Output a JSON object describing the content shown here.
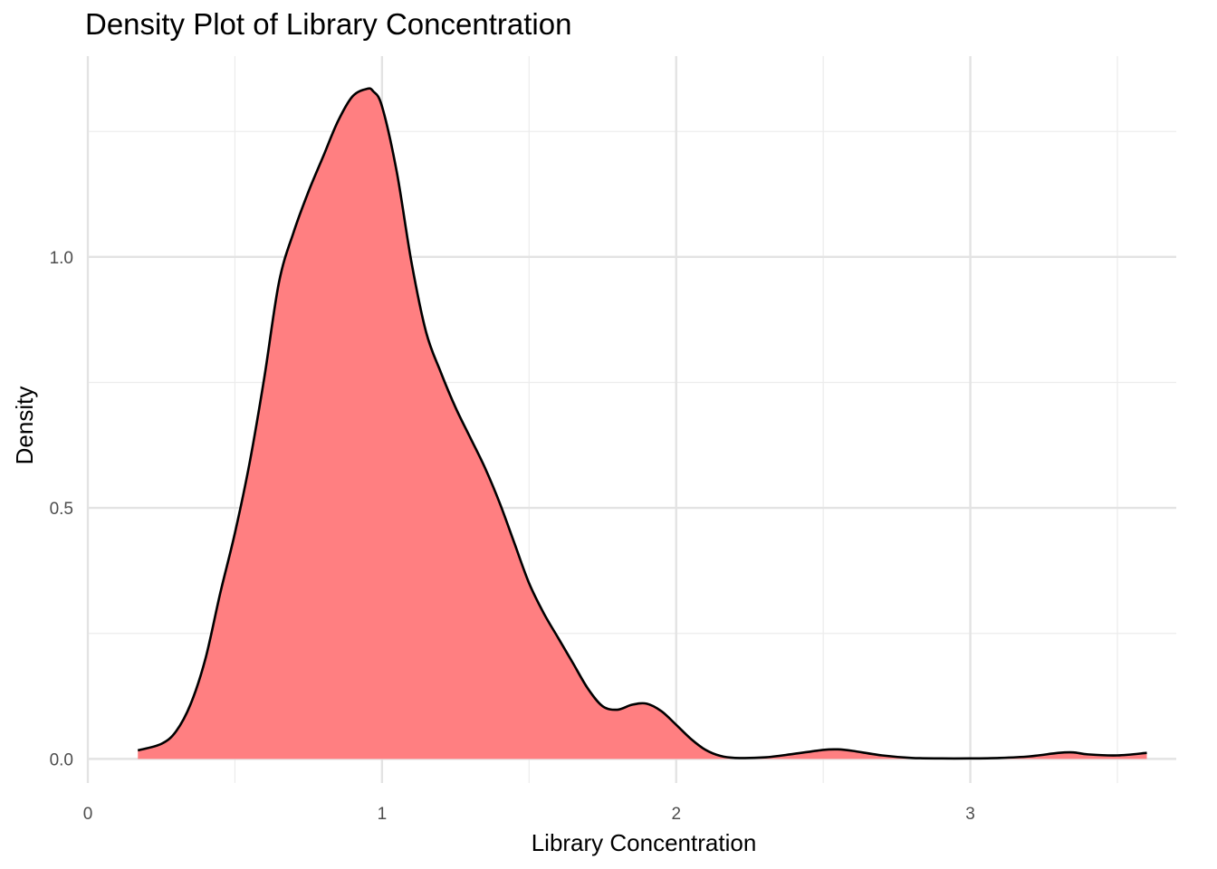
{
  "chart_data": {
    "type": "area",
    "title": "Density Plot of Library Concentration",
    "xlabel": "Library Concentration",
    "ylabel": "Density",
    "xlim": [
      0,
      3.7
    ],
    "ylim": [
      -0.048,
      1.4
    ],
    "x_ticks": [
      0,
      1,
      2,
      3
    ],
    "x_tick_labels": [
      "0",
      "1",
      "2",
      "3"
    ],
    "y_ticks": [
      0.0,
      0.5,
      1.0
    ],
    "y_tick_labels": [
      "0.0",
      "0.5",
      "1.0"
    ],
    "grid": true,
    "fill_color": "#ff7f81",
    "line_color": "#000000",
    "series": [
      {
        "x": [
          0.17,
          0.25,
          0.3,
          0.35,
          0.4,
          0.45,
          0.5,
          0.55,
          0.6,
          0.65,
          0.7,
          0.75,
          0.8,
          0.85,
          0.9,
          0.95,
          0.97,
          1.0,
          1.05,
          1.1,
          1.15,
          1.2,
          1.25,
          1.3,
          1.35,
          1.4,
          1.45,
          1.5,
          1.55,
          1.6,
          1.65,
          1.7,
          1.75,
          1.8,
          1.85,
          1.9,
          1.95,
          2.0,
          2.05,
          2.1,
          2.15,
          2.2,
          2.3,
          2.4,
          2.5,
          2.55,
          2.6,
          2.7,
          2.8,
          2.9,
          3.0,
          3.1,
          3.2,
          3.3,
          3.35,
          3.4,
          3.5,
          3.6
        ],
        "y": [
          0.017,
          0.03,
          0.055,
          0.11,
          0.2,
          0.33,
          0.45,
          0.59,
          0.76,
          0.95,
          1.05,
          1.13,
          1.2,
          1.27,
          1.32,
          1.335,
          1.33,
          1.3,
          1.17,
          0.99,
          0.85,
          0.77,
          0.7,
          0.64,
          0.58,
          0.51,
          0.43,
          0.35,
          0.29,
          0.24,
          0.19,
          0.14,
          0.105,
          0.098,
          0.108,
          0.11,
          0.095,
          0.068,
          0.04,
          0.018,
          0.006,
          0.002,
          0.003,
          0.01,
          0.018,
          0.019,
          0.016,
          0.007,
          0.002,
          0.001,
          0.001,
          0.002,
          0.005,
          0.012,
          0.013,
          0.009,
          0.007,
          0.012
        ]
      }
    ]
  }
}
